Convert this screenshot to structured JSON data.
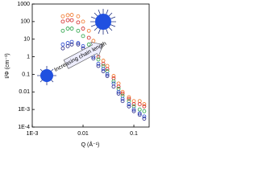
{
  "chart_data": {
    "type": "scatter",
    "xlabel": "Q (Å⁻¹)",
    "ylabel": "I/Φ (cm⁻¹)",
    "annotation": "Increasing chain length",
    "log_x": true,
    "log_y": true,
    "xlim": [
      0.001,
      0.2
    ],
    "ylim": [
      0.0001,
      1000
    ],
    "xticks": [
      {
        "value": 0.001,
        "label": "1E-3"
      },
      0.01,
      0.1
    ],
    "yticks": [
      {
        "value": 0.0001,
        "label": "1E-4"
      },
      {
        "value": 0.001,
        "label": "1E-3"
      },
      0.01,
      0.1,
      1,
      10,
      100,
      1000
    ],
    "x": [
      0.004,
      0.005,
      0.006,
      0.008,
      0.01,
      0.013,
      0.016,
      0.02,
      0.025,
      0.03,
      0.04,
      0.05,
      0.06,
      0.08,
      0.1,
      0.13,
      0.16
    ],
    "series": [
      {
        "color": "#f07020",
        "values": [
          200,
          230,
          240,
          200,
          100,
          30,
          8,
          2,
          0.6,
          0.3,
          0.08,
          0.03,
          0.01,
          0.005,
          0.003,
          0.003,
          0.002
        ]
      },
      {
        "color": "#d02020",
        "values": [
          100,
          120,
          120,
          90,
          40,
          12,
          4,
          1,
          0.4,
          0.2,
          0.06,
          0.02,
          0.008,
          0.004,
          0.002,
          0.002,
          0.0015
        ]
      },
      {
        "color": "#20a040",
        "values": [
          30,
          40,
          40,
          30,
          15,
          5,
          2,
          0.7,
          0.3,
          0.15,
          0.04,
          0.015,
          0.006,
          0.003,
          0.0015,
          0.001,
          0.0008
        ]
      },
      {
        "color": "#2040d0",
        "values": [
          5,
          6,
          7,
          6,
          4,
          2,
          1,
          0.4,
          0.2,
          0.1,
          0.03,
          0.01,
          0.004,
          0.002,
          0.001,
          0.0006,
          0.0004
        ]
      },
      {
        "color": "#202080",
        "values": [
          3,
          4,
          5,
          5,
          3,
          1.5,
          0.8,
          0.3,
          0.15,
          0.08,
          0.02,
          0.008,
          0.003,
          0.0015,
          0.0008,
          0.0005,
          0.0003
        ]
      }
    ]
  }
}
